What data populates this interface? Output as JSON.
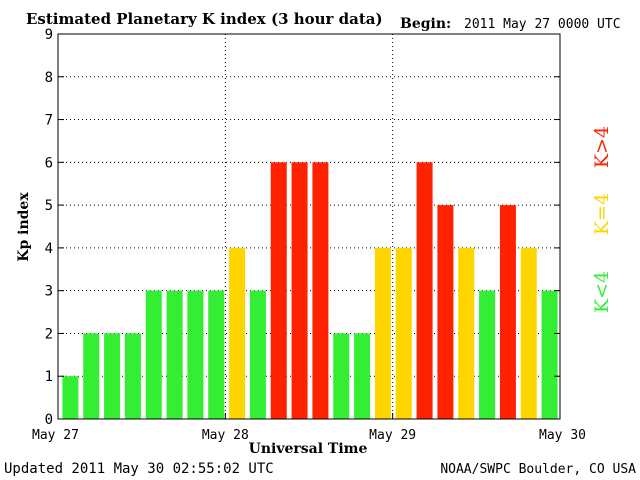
{
  "header": {
    "title": "Estimated Planetary K index (3 hour data)",
    "begin_label": "Begin:",
    "begin_value": "2011 May 27 0000 UTC"
  },
  "footer": {
    "updated": "Updated 2011 May 30 02:55:02 UTC",
    "source": "NOAA/SWPC Boulder, CO USA"
  },
  "legend": {
    "above": "K>4",
    "equal": "K=4",
    "below": "K<4"
  },
  "colors": {
    "below": "#33ee33",
    "equal": "#ffd500",
    "above": "#ff2200",
    "grid": "#000000",
    "axis": "#000000",
    "background": "#ffffff"
  },
  "chart_data": {
    "type": "bar",
    "title": "Estimated Planetary K index (3 hour data)",
    "xlabel": "Universal Time",
    "ylabel": "Kp index",
    "ylim": [
      0,
      9
    ],
    "yticks": [
      0,
      1,
      2,
      3,
      4,
      5,
      6,
      7,
      8,
      9
    ],
    "x_tick_labels": [
      "May 27",
      "May 28",
      "May 29",
      "May 30"
    ],
    "interval_hours": 3,
    "values": [
      1,
      2,
      2,
      2,
      3,
      3,
      3,
      3,
      4,
      3,
      6,
      6,
      6,
      2,
      2,
      4,
      4,
      6,
      5,
      4,
      3,
      5,
      4,
      3
    ],
    "grid": "dotted"
  }
}
